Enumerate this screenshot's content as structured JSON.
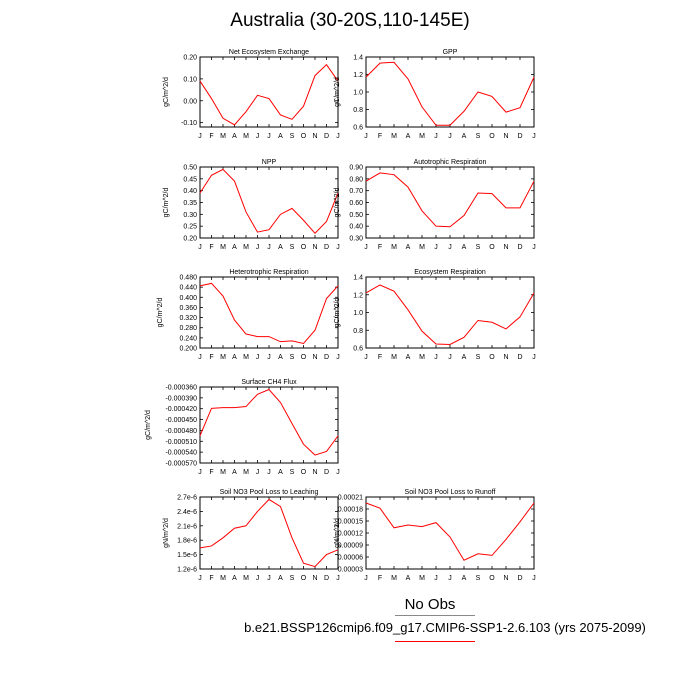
{
  "title": "Australia (30-20S,110-145E)",
  "legend": {
    "obs_label": "No Obs",
    "run_label": "b.e21.BSSP126cmip6.f09_g17.CMIP6-SSP1-2.6.103 (yrs 2075-2099)",
    "run_color": "#ff0000"
  },
  "chart_data": [
    {
      "type": "line",
      "title": "Net Ecosystem Exchange",
      "ylabel": "gC/m^2/d",
      "x": [
        "J",
        "F",
        "M",
        "A",
        "M",
        "J",
        "J",
        "A",
        "S",
        "O",
        "N",
        "D",
        "J"
      ],
      "ylim": [
        -0.12,
        0.2
      ],
      "yticks": [
        "-0.10",
        "0.00",
        "0.10",
        "0.20"
      ],
      "ytick_values": [
        -0.1,
        0.0,
        0.1,
        0.2
      ],
      "series": [
        {
          "values": [
            0.09,
            0.01,
            -0.08,
            -0.11,
            -0.05,
            0.025,
            0.01,
            -0.065,
            -0.085,
            -0.025,
            0.115,
            0.165,
            0.09
          ]
        }
      ]
    },
    {
      "type": "line",
      "title": "GPP",
      "ylabel": "gC/m^2/d",
      "x": [
        "J",
        "F",
        "M",
        "A",
        "M",
        "J",
        "J",
        "A",
        "S",
        "O",
        "N",
        "D",
        "J"
      ],
      "ylim": [
        0.6,
        1.4
      ],
      "yticks": [
        "0.6",
        "0.8",
        "1.0",
        "1.2",
        "1.4"
      ],
      "ytick_values": [
        0.6,
        0.8,
        1.0,
        1.2,
        1.4
      ],
      "series": [
        {
          "values": [
            1.17,
            1.33,
            1.34,
            1.15,
            0.83,
            0.62,
            0.62,
            0.78,
            1.0,
            0.95,
            0.77,
            0.82,
            1.17
          ]
        }
      ]
    },
    {
      "type": "line",
      "title": "NPP",
      "ylabel": "gC/m^2/d",
      "x": [
        "J",
        "F",
        "M",
        "A",
        "M",
        "J",
        "J",
        "A",
        "S",
        "O",
        "N",
        "D",
        "J"
      ],
      "ylim": [
        0.2,
        0.5
      ],
      "yticks": [
        "0.20",
        "0.25",
        "0.30",
        "0.35",
        "0.40",
        "0.45",
        "0.50"
      ],
      "ytick_values": [
        0.2,
        0.25,
        0.3,
        0.35,
        0.4,
        0.45,
        0.5
      ],
      "series": [
        {
          "values": [
            0.39,
            0.465,
            0.49,
            0.44,
            0.31,
            0.225,
            0.235,
            0.3,
            0.325,
            0.275,
            0.22,
            0.27,
            0.39
          ]
        }
      ]
    },
    {
      "type": "line",
      "title": "Autotrophic Respiration",
      "ylabel": "gC/m^2/d",
      "x": [
        "J",
        "F",
        "M",
        "A",
        "M",
        "J",
        "J",
        "A",
        "S",
        "O",
        "N",
        "D",
        "J"
      ],
      "ylim": [
        0.3,
        0.9
      ],
      "yticks": [
        "0.30",
        "0.40",
        "0.50",
        "0.60",
        "0.70",
        "0.80",
        "0.90"
      ],
      "ytick_values": [
        0.3,
        0.4,
        0.5,
        0.6,
        0.7,
        0.8,
        0.9
      ],
      "series": [
        {
          "values": [
            0.78,
            0.85,
            0.835,
            0.73,
            0.53,
            0.4,
            0.395,
            0.49,
            0.68,
            0.675,
            0.555,
            0.555,
            0.78
          ]
        }
      ]
    },
    {
      "type": "line",
      "title": "Heterotrophic Respiration",
      "ylabel": "gC/m^2/d",
      "x": [
        "J",
        "F",
        "M",
        "A",
        "M",
        "J",
        "J",
        "A",
        "S",
        "O",
        "N",
        "D",
        "J"
      ],
      "ylim": [
        0.2,
        0.48
      ],
      "yticks": [
        "0.200",
        "0.240",
        "0.280",
        "0.320",
        "0.360",
        "0.400",
        "0.440",
        "0.480"
      ],
      "ytick_values": [
        0.2,
        0.24,
        0.28,
        0.32,
        0.36,
        0.4,
        0.44,
        0.48
      ],
      "series": [
        {
          "values": [
            0.445,
            0.455,
            0.405,
            0.31,
            0.255,
            0.245,
            0.245,
            0.225,
            0.228,
            0.218,
            0.27,
            0.395,
            0.445
          ]
        }
      ]
    },
    {
      "type": "line",
      "title": "Ecosystem Respiration",
      "ylabel": "gC/m^2/d",
      "x": [
        "J",
        "F",
        "M",
        "A",
        "M",
        "J",
        "J",
        "A",
        "S",
        "O",
        "N",
        "D",
        "J"
      ],
      "ylim": [
        0.6,
        1.4
      ],
      "yticks": [
        "0.6",
        "0.8",
        "1.0",
        "1.2",
        "1.4"
      ],
      "ytick_values": [
        0.6,
        0.8,
        1.0,
        1.2,
        1.4
      ],
      "series": [
        {
          "values": [
            1.22,
            1.31,
            1.24,
            1.03,
            0.79,
            0.645,
            0.64,
            0.72,
            0.91,
            0.89,
            0.815,
            0.95,
            1.22
          ]
        }
      ]
    },
    {
      "type": "line",
      "title": "Surface CH4 Flux",
      "ylabel": "gC/m^2/d",
      "x": [
        "J",
        "F",
        "M",
        "A",
        "M",
        "J",
        "J",
        "A",
        "S",
        "O",
        "N",
        "D",
        "J"
      ],
      "ylim": [
        -0.00057,
        -0.00036
      ],
      "yticks": [
        "-0.000360",
        "-0.000390",
        "-0.000420",
        "-0.000450",
        "-0.000480",
        "-0.000510",
        "-0.000540",
        "-0.000570"
      ],
      "ytick_values": [
        -0.00036,
        -0.00039,
        -0.00042,
        -0.00045,
        -0.00048,
        -0.00051,
        -0.00054,
        -0.00057
      ],
      "series": [
        {
          "values": [
            -0.000495,
            -0.000419,
            -0.000417,
            -0.000417,
            -0.000414,
            -0.00038,
            -0.000367,
            -0.000403,
            -0.000461,
            -0.000518,
            -0.000548,
            -0.000538,
            -0.000495
          ]
        }
      ]
    },
    {
      "type": "line",
      "title": "Soil NO3 Pool Loss to Leaching",
      "ylabel": "gN/m^2/d",
      "x": [
        "J",
        "F",
        "M",
        "A",
        "M",
        "J",
        "J",
        "A",
        "S",
        "O",
        "N",
        "D",
        "J"
      ],
      "ylim": [
        1.2e-06,
        2.7e-06
      ],
      "yticks": [
        "1.2e-6",
        "1.5e-6",
        "1.8e-6",
        "2.1e-6",
        "2.4e-6",
        "2.7e-6"
      ],
      "ytick_values": [
        1.2e-06,
        1.5e-06,
        1.8e-06,
        2.1e-06,
        2.4e-06,
        2.7e-06
      ],
      "series": [
        {
          "values": [
            1.64e-06,
            1.68e-06,
            1.85e-06,
            2.05e-06,
            2.1e-06,
            2.4e-06,
            2.65e-06,
            2.5e-06,
            1.85e-06,
            1.32e-06,
            1.25e-06,
            1.5e-06,
            1.6e-06
          ]
        }
      ]
    },
    {
      "type": "line",
      "title": "Soil NO3 Pool Loss to Runoff",
      "ylabel": "gN/m^2/d",
      "x": [
        "J",
        "F",
        "M",
        "A",
        "M",
        "J",
        "J",
        "A",
        "S",
        "O",
        "N",
        "D",
        "J"
      ],
      "ylim": [
        3e-05,
        0.00021
      ],
      "yticks": [
        "0.00003",
        "0.00006",
        "0.00009",
        "0.00012",
        "0.00015",
        "0.00018",
        "0.00021"
      ],
      "ytick_values": [
        3e-05,
        6e-05,
        9e-05,
        0.00012,
        0.00015,
        0.00018,
        0.00021
      ],
      "series": [
        {
          "values": [
            0.000195,
            0.000182,
            0.000133,
            0.00014,
            0.000136,
            0.000146,
            0.00011,
            5.2e-05,
            6.8e-05,
            6.4e-05,
            0.000104,
            0.000148,
            0.000195
          ]
        }
      ]
    }
  ]
}
